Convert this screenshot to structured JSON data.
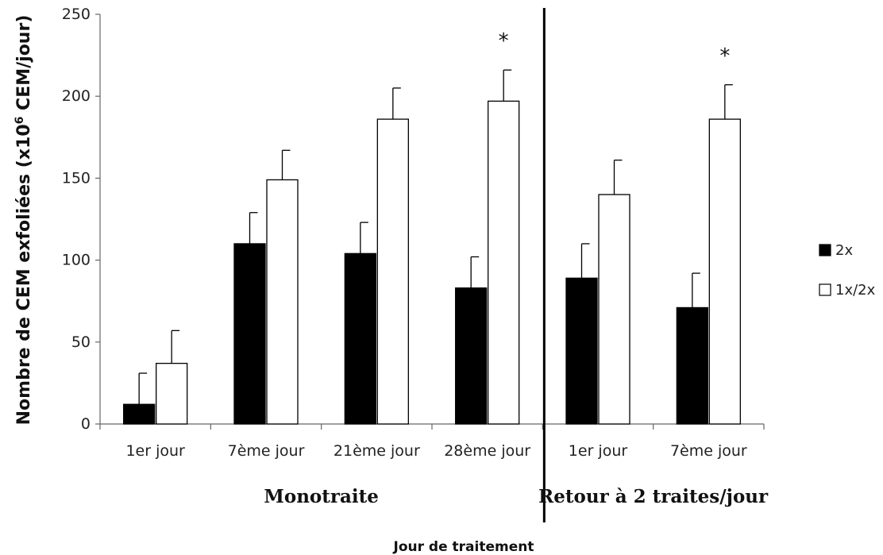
{
  "chart_data": {
    "type": "bar",
    "title": "",
    "ylabel": "Nombre de CEM exfoliées (x10",
    "ylabel_sup": "6",
    "ylabel_end": " CEM/jour)",
    "xlabel": "Jour de traitement",
    "ylim": [
      0,
      250
    ],
    "yticks": [
      "0",
      "50",
      "100",
      "150",
      "200",
      "250"
    ],
    "categories": [
      "1er jour",
      "7ème jour",
      "21ème jour",
      "28ème jour",
      "1er jour",
      "7ème jour"
    ],
    "groups": [
      {
        "label": "Monotraite",
        "categories": [
          0,
          1,
          2,
          3
        ]
      },
      {
        "label": "Retour à 2 traites/jour",
        "categories": [
          4,
          5
        ]
      }
    ],
    "series": [
      {
        "name": "2x",
        "color": "#000000",
        "values": [
          12,
          110,
          104,
          83,
          89,
          71
        ],
        "errors": [
          19,
          19,
          19,
          19,
          21,
          21
        ]
      },
      {
        "name": "1x/2x",
        "color": "#ffffff",
        "values": [
          37,
          149,
          186,
          197,
          140,
          186
        ],
        "errors": [
          20,
          18,
          19,
          19,
          21,
          21
        ]
      }
    ],
    "annotations": [
      {
        "category": 3,
        "text": "*"
      },
      {
        "category": 5,
        "text": "*"
      }
    ],
    "legend": "right",
    "grid": false
  }
}
